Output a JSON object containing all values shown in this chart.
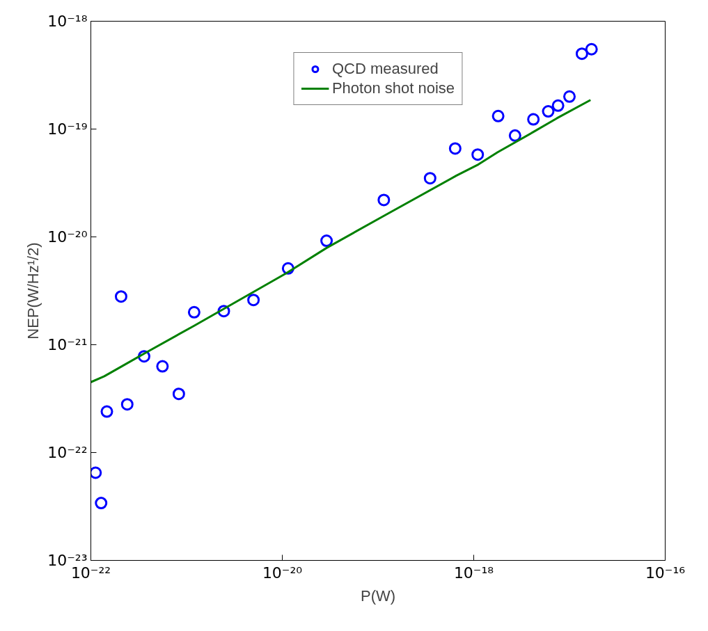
{
  "chart_data": {
    "type": "scatter",
    "xlabel": "P(W)",
    "ylabel": "NEP(W/Hz¹/2)",
    "log": "xy",
    "grid": false,
    "legend": "top",
    "xlim": [
      1e-22,
      1e-16
    ],
    "ylim": [
      1e-23,
      1e-18
    ],
    "xticks": [
      {
        "value": 1e-22,
        "label": "10⁻²²"
      },
      {
        "value": 1e-20,
        "label": "10⁻²⁰"
      },
      {
        "value": 1e-18,
        "label": "10⁻¹⁸"
      },
      {
        "value": 1e-16,
        "label": "10⁻¹⁶"
      }
    ],
    "yticks": [
      {
        "value": 1e-23,
        "label": "10⁻²³"
      },
      {
        "value": 1e-22,
        "label": "10⁻²²"
      },
      {
        "value": 1e-21,
        "label": "10⁻²¹"
      },
      {
        "value": 1e-20,
        "label": "10⁻²⁰"
      },
      {
        "value": 1e-19,
        "label": "10⁻¹⁹"
      },
      {
        "value": 1e-18,
        "label": "10⁻¹⁸"
      }
    ],
    "series": [
      {
        "name": "QCD measured",
        "marker": "circle",
        "color": "#0000ff",
        "x": [
          1.12e-22,
          1.28e-22,
          1.47e-22,
          2.07e-22,
          2.4e-22,
          3.6e-22,
          5.6e-22,
          8.3e-22,
          1.2e-21,
          2.45e-21,
          5e-21,
          1.15e-20,
          2.9e-20,
          1.15e-19,
          3.5e-19,
          6.4e-19,
          1.1e-18,
          1.8e-18,
          2.7e-18,
          4.2e-18,
          6e-18,
          7.6e-18,
          1e-17,
          1.35e-17,
          1.7e-17
        ],
        "values": [
          6.5e-23,
          3.4e-23,
          2.4e-22,
          2.8e-21,
          2.8e-22,
          7.8e-22,
          6.3e-22,
          3.5e-22,
          2e-21,
          2.05e-21,
          2.6e-21,
          5.1e-21,
          9.2e-21,
          2.2e-20,
          3.5e-20,
          6.6e-20,
          5.8e-20,
          1.32e-19,
          8.7e-20,
          1.23e-19,
          1.46e-19,
          1.65e-19,
          2e-19,
          5e-19,
          5.5e-19
        ]
      },
      {
        "name": "Photon shot noise",
        "type": "line",
        "line_style": "solid",
        "color": "#008000",
        "x": [
          1e-22,
          1.38e-22,
          2.04e-22,
          3.8e-22,
          1.2e-21,
          1.1e-20,
          2.9e-20,
          1.17e-19,
          6.6e-19,
          1.12e-18,
          1.78e-18,
          4.2e-18,
          7.4e-18,
          1.66e-17
        ],
        "values": [
          4.5e-22,
          5.1e-22,
          6.2e-22,
          8.5e-22,
          1.5e-21,
          4.6e-21,
          7.9e-21,
          1.58e-20,
          3.7e-20,
          4.7e-20,
          6.1e-20,
          9.4e-20,
          1.26e-19,
          1.86e-19
        ]
      }
    ]
  }
}
